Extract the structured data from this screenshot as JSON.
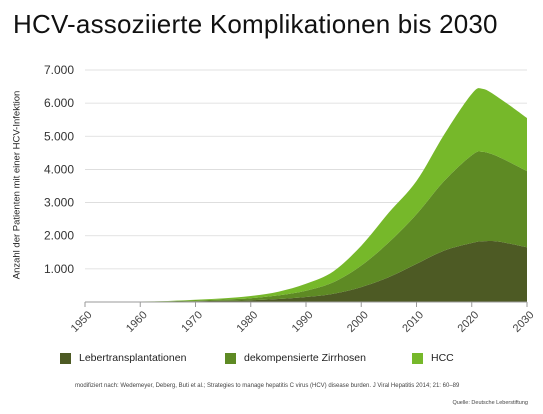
{
  "title": "HCV-assoziierte Komplikationen bis 2030",
  "footnote": "modifiziert nach: Wedemeyer, Deberg, Buti et al.; Strategies to manage hepatitis C virus (HCV) disease burden. J Viral Hepatitis 2014; 21: 60–89",
  "credit": "Quelle: Deutsche Leberstiftung",
  "chart_data": {
    "type": "area",
    "stacked": true,
    "title": "HCV-assoziierte Komplikationen bis 2030",
    "xlabel": "",
    "ylabel": "Anzahl der Patienten mit einer HCV-Infektion",
    "x_ticks": [
      "1950",
      "1960",
      "1970",
      "1980",
      "1990",
      "2000",
      "2010",
      "2020",
      "2030"
    ],
    "y_ticks": [
      "1.000",
      "2.000",
      "3.000",
      "4.000",
      "5.000",
      "6.000",
      "7.000"
    ],
    "xlim": [
      1950,
      2030
    ],
    "ylim": [
      0,
      7000
    ],
    "grid": "horizontal",
    "legend_position": "bottom",
    "x": [
      1950,
      1955,
      1960,
      1965,
      1970,
      1975,
      1980,
      1985,
      1990,
      1995,
      2000,
      2005,
      2010,
      2015,
      2020,
      2022,
      2025,
      2030
    ],
    "series": [
      {
        "name": "Lebertransplantationen",
        "color": "#4d5a24",
        "values": [
          0,
          2,
          5,
          10,
          20,
          35,
          55,
          90,
          150,
          250,
          450,
          750,
          1150,
          1550,
          1780,
          1830,
          1820,
          1650
        ]
      },
      {
        "name": "dekompensierte Zirrhosen",
        "color": "#5e8a24",
        "values": [
          0,
          2,
          5,
          10,
          25,
          40,
          60,
          110,
          190,
          350,
          650,
          1050,
          1500,
          2100,
          2650,
          2700,
          2550,
          2300
        ]
      },
      {
        "name": "HCC",
        "color": "#76b82a",
        "values": [
          0,
          1,
          5,
          10,
          20,
          35,
          65,
          110,
          210,
          330,
          600,
          900,
          1000,
          1400,
          1850,
          1900,
          1780,
          1600
        ]
      }
    ]
  }
}
